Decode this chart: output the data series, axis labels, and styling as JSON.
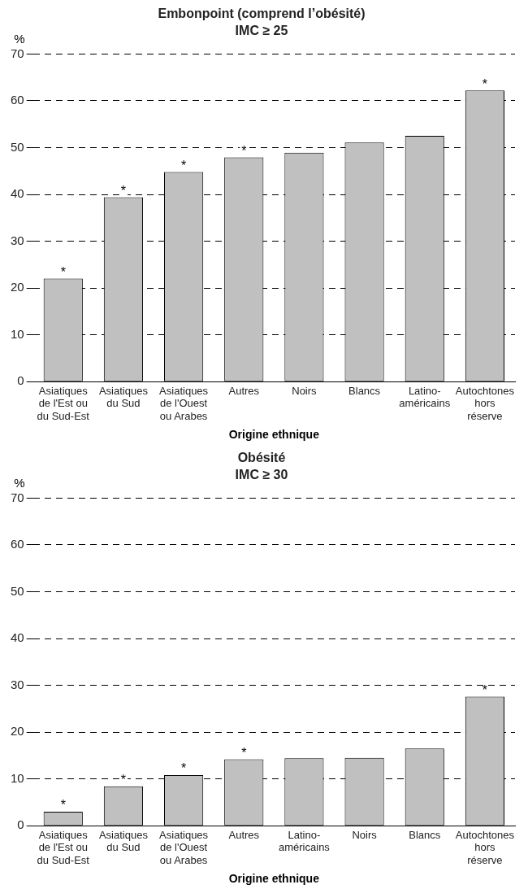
{
  "chart_data": [
    {
      "type": "bar",
      "title": "Embonpoint (comprend l’obésité)",
      "subtitle": "IMC ≥ 25",
      "ylabel": "%",
      "xlabel": "Origine ethnique",
      "categories": [
        "Asiatiques\nde l'Est ou\ndu Sud-Est",
        "Asiatiques\ndu Sud",
        "Asiatiques\nde l'Ouest\nou Arabes",
        "Autres",
        "Noirs",
        "Blancs",
        "Latino-\naméricains",
        "Autochtones\nhors\nréserve"
      ],
      "values": [
        22.0,
        39.4,
        44.8,
        47.9,
        48.9,
        51.1,
        52.5,
        62.2
      ],
      "color": "#c0c0c0",
      "ylim": [
        0,
        70
      ],
      "yticks": [
        0,
        10,
        20,
        30,
        40,
        50,
        60,
        70
      ],
      "grid": "y",
      "legend": false,
      "annotations": [
        {
          "text": "*",
          "x": "Asiatiques\nde l'Est ou\ndu Sud-Est",
          "y": 22.0
        },
        {
          "text": "*",
          "x": "Asiatiques\ndu Sud",
          "y": 39.4
        },
        {
          "text": "*",
          "x": "Asiatiques\nde l'Ouest\nou Arabes",
          "y": 44.8
        },
        {
          "text": "*",
          "x": "Autres",
          "y": 47.9
        },
        {
          "text": "*",
          "x": "Autochtones\nhors\nréserve",
          "y": 62.2
        }
      ]
    },
    {
      "type": "bar",
      "title": "Obésité",
      "subtitle": "IMC ≥ 30",
      "ylabel": "%",
      "xlabel": "Origine ethnique",
      "categories": [
        "Asiatiques\nde l'Est ou\ndu Sud-Est",
        "Asiatiques\ndu Sud",
        "Asiatiques\nde l'Ouest\nou Arabes",
        "Autres",
        "Latino-\naméricains",
        "Noirs",
        "Blancs",
        "Autochtones\nhors\nréserve"
      ],
      "values": [
        3.0,
        8.4,
        10.8,
        14.2,
        14.4,
        14.5,
        16.5,
        27.6
      ],
      "color": "#c0c0c0",
      "ylim": [
        0,
        70
      ],
      "yticks": [
        0,
        10,
        20,
        30,
        40,
        50,
        60,
        70
      ],
      "grid": "y",
      "legend": false,
      "annotations": [
        {
          "text": "*",
          "x": "Asiatiques\nde l'Est ou\ndu Sud-Est",
          "y": 3.0
        },
        {
          "text": "*",
          "x": "Asiatiques\ndu Sud",
          "y": 8.4
        },
        {
          "text": "*",
          "x": "Asiatiques\nde l'Ouest\nou Arabes",
          "y": 10.8
        },
        {
          "text": "*",
          "x": "Autres",
          "y": 14.2
        },
        {
          "text": "*",
          "x": "Autochtones\nhors\nréserve",
          "y": 27.6
        }
      ]
    }
  ]
}
